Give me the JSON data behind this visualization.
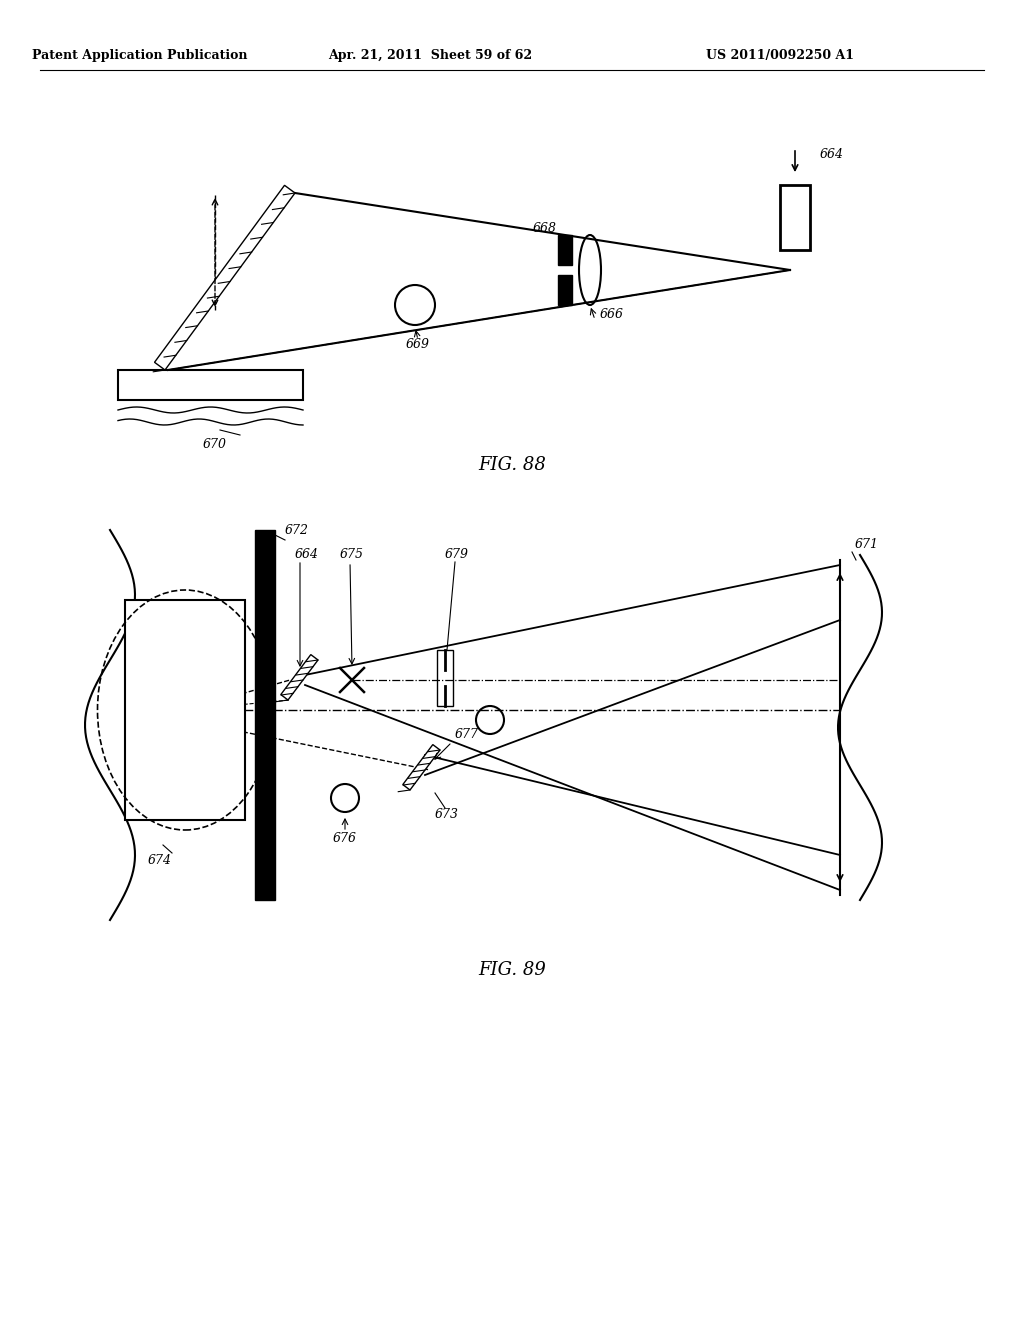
{
  "background_color": "#ffffff",
  "header_text": "Patent Application Publication",
  "header_date": "Apr. 21, 2011  Sheet 59 of 62",
  "header_patent": "US 2011/0092250 A1",
  "fig88_label": "FIG. 88",
  "fig89_label": "FIG. 89",
  "page_width": 10.24,
  "page_height": 13.2,
  "dpi": 100
}
